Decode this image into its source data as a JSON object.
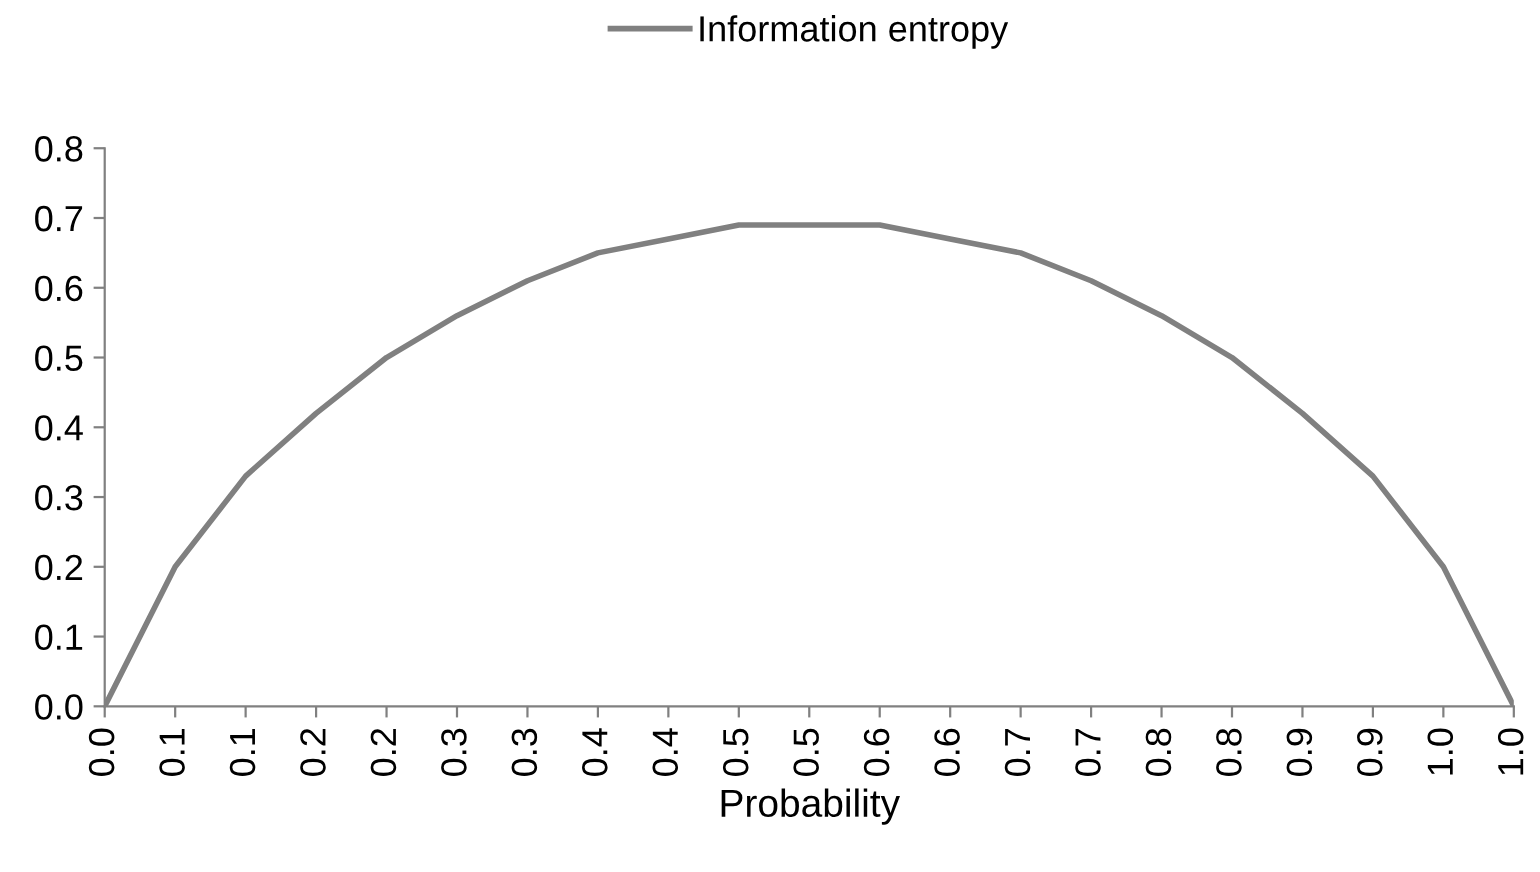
{
  "chart_data": {
    "type": "line",
    "xlabel": "Probability",
    "categories": [
      "0.0",
      "0.1",
      "0.1",
      "0.2",
      "0.2",
      "0.3",
      "0.3",
      "0.4",
      "0.4",
      "0.5",
      "0.5",
      "0.6",
      "0.6",
      "0.7",
      "0.7",
      "0.8",
      "0.8",
      "0.9",
      "0.9",
      "1.0",
      "1.0"
    ],
    "series": [
      {
        "name": "Information entropy",
        "color": "#808080",
        "values": [
          0.0,
          0.2,
          0.33,
          0.42,
          0.5,
          0.56,
          0.61,
          0.65,
          0.67,
          0.69,
          0.69,
          0.69,
          0.67,
          0.65,
          0.61,
          0.56,
          0.5,
          0.42,
          0.33,
          0.2,
          0.0
        ]
      }
    ],
    "ylim": [
      0,
      0.8
    ],
    "yticks": [
      {
        "value": 0,
        "label": "0.0"
      },
      {
        "value": 0.1,
        "label": "0.1"
      },
      {
        "value": 0.2,
        "label": "0.2"
      },
      {
        "value": 0.3,
        "label": "0.3"
      },
      {
        "value": 0.4,
        "label": "0.4"
      },
      {
        "value": 0.5,
        "label": "0.5"
      },
      {
        "value": 0.6,
        "label": "0.6"
      },
      {
        "value": 0.7,
        "label": "0.7"
      },
      {
        "value": 0.8,
        "label": "0.8"
      }
    ],
    "grid": false,
    "legend": "top",
    "marker": "none",
    "line_style": "solid"
  }
}
